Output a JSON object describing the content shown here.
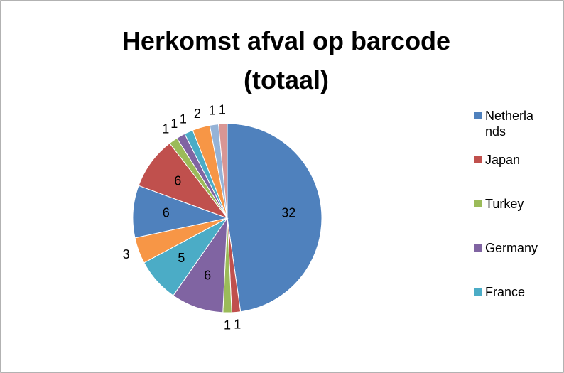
{
  "chart_data": {
    "type": "pie",
    "title": "Herkomst afval op barcode (totaal)",
    "categories": [
      "Netherlands",
      "Japan",
      "Turkey",
      "Germany",
      "France",
      null,
      null,
      null,
      null,
      null,
      null,
      null,
      null,
      null
    ],
    "values": [
      32,
      1,
      1,
      6,
      5,
      3,
      6,
      6,
      1,
      1,
      1,
      2,
      1,
      1
    ],
    "colors": [
      "#4F81BD",
      "#C0504D",
      "#9BBB59",
      "#8064A2",
      "#4BACC6",
      "#F79646",
      "#4F81BD",
      "#C0504D",
      "#9BBB59",
      "#8064A2",
      "#4BACC6",
      "#F79646",
      "#95B3D7",
      "#D99694"
    ],
    "legend": "right"
  }
}
